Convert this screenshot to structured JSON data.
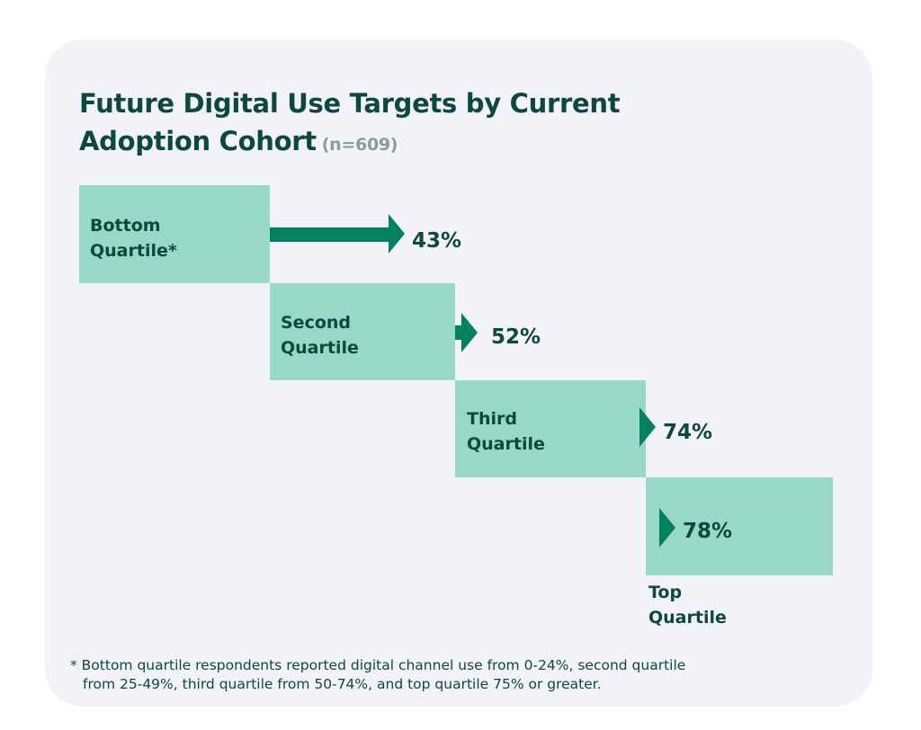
{
  "title": "Future Digital Use Targets by Current Adoption Cohort",
  "title_line1": "Future Digital Use Targets by Current",
  "title_line2": "Adoption Cohort",
  "sample_size": "(n=609)",
  "chart_data": {
    "type": "bar",
    "title": "Future Digital Use Targets by Current Adoption Cohort",
    "subtitle": "(n=609)",
    "categories": [
      "Bottom Quartile*",
      "Second Quartile",
      "Third Quartile",
      "Top Quartile"
    ],
    "category_lines": [
      [
        "Bottom",
        "Quartile*"
      ],
      [
        "Second",
        "Quartile"
      ],
      [
        "Third",
        "Quartile"
      ],
      [
        "Top",
        "Quartile"
      ]
    ],
    "values": [
      43,
      52,
      74,
      78
    ],
    "value_labels": [
      "43%",
      "52%",
      "74%",
      "78%"
    ],
    "colors": {
      "box": "#98d8c6",
      "arrow": "#008262",
      "text": "#0d4741"
    }
  },
  "footnote_line1": "* Bottom quartile respondents reported digital channel use from 0-24%, second quartile",
  "footnote_line2": "from 25-49%, third quartile from 50-74%, and top quartile 75% or greater."
}
